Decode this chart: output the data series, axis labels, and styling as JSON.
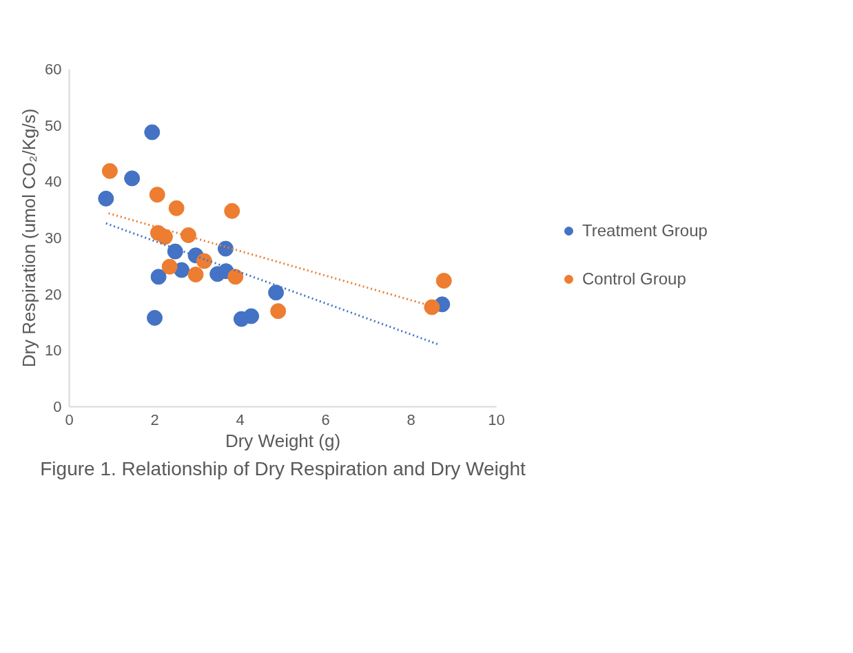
{
  "chart_data": {
    "type": "scatter",
    "title": "Figure 1. Relationship of Dry Respiration and Dry Weight",
    "xlabel": "Dry Weight (g)",
    "ylabel": "Dry Respiration (umol CO₂/Kg/s)",
    "xlim": [
      0,
      10
    ],
    "xticks": [
      0,
      2,
      4,
      6,
      8,
      10
    ],
    "ylim": [
      0,
      60
    ],
    "yticks": [
      0,
      10,
      20,
      30,
      40,
      50,
      60
    ],
    "grid": false,
    "legend": "right",
    "marker": "circle",
    "series": [
      {
        "name": "Treatment Group",
        "color": "#4472c4",
        "x": [
          0.86,
          1.47,
          1.94,
          2.0,
          2.09,
          2.48,
          2.63,
          2.96,
          3.47,
          3.66,
          3.67,
          4.03,
          4.26,
          4.84,
          8.73
        ],
        "values": [
          37.0,
          40.6,
          48.8,
          15.8,
          23.1,
          27.6,
          24.3,
          26.9,
          23.6,
          28.1,
          24.1,
          15.6,
          16.1,
          20.3,
          18.2
        ]
      },
      {
        "name": "Control Group",
        "color": "#ed7d31",
        "x": [
          0.95,
          2.06,
          2.08,
          2.24,
          2.35,
          2.51,
          2.79,
          2.96,
          3.16,
          3.81,
          3.89,
          4.89,
          8.49,
          8.77
        ],
        "values": [
          41.9,
          37.7,
          30.9,
          30.2,
          24.9,
          35.3,
          30.5,
          23.5,
          25.9,
          34.8,
          23.1,
          17.0,
          17.7,
          22.4
        ]
      },
      {
        "type": "line",
        "color": "#4472c4",
        "line_style": "dotted",
        "marker": "none",
        "x": [
          0.86,
          8.67
        ],
        "values": [
          32.6,
          11.0
        ]
      },
      {
        "type": "line",
        "color": "#ed7d31",
        "line_style": "dotted",
        "marker": "none",
        "x": [
          0.92,
          8.57
        ],
        "values": [
          34.4,
          17.7
        ]
      }
    ]
  }
}
